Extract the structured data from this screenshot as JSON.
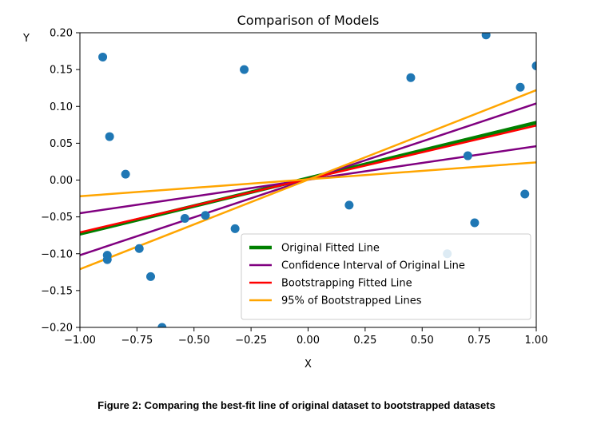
{
  "chart_data": {
    "type": "scatter",
    "title": "Comparison of Models",
    "xlabel": "X",
    "ylabel": "Y",
    "xlim": [
      -1.0,
      1.0
    ],
    "ylim": [
      -0.2,
      0.2
    ],
    "xticks": [
      -1.0,
      -0.75,
      -0.5,
      -0.25,
      0.0,
      0.25,
      0.5,
      0.75,
      1.0
    ],
    "xtick_labels": [
      "−1.00",
      "−0.75",
      "−0.50",
      "−0.25",
      "0.00",
      "0.25",
      "0.50",
      "0.75",
      "1.00"
    ],
    "yticks": [
      -0.2,
      -0.15,
      -0.1,
      -0.05,
      0.0,
      0.05,
      0.1,
      0.15,
      0.2
    ],
    "ytick_labels": [
      "−0.20",
      "−0.15",
      "−0.10",
      "−0.05",
      "0.00",
      "0.05",
      "0.10",
      "0.15",
      "0.20"
    ],
    "grid": false,
    "legend_position": "lower-right",
    "scatter_points": {
      "color": "#1f77b4",
      "points": [
        [
          -0.9,
          0.167
        ],
        [
          -0.87,
          0.059
        ],
        [
          -0.8,
          0.008
        ],
        [
          -0.88,
          -0.102
        ],
        [
          -0.88,
          -0.108
        ],
        [
          -0.74,
          -0.093
        ],
        [
          -0.69,
          -0.131
        ],
        [
          -0.64,
          -0.2
        ],
        [
          -0.54,
          -0.052
        ],
        [
          -0.45,
          -0.048
        ],
        [
          -0.32,
          -0.066
        ],
        [
          -0.28,
          0.15
        ],
        [
          0.18,
          -0.034
        ],
        [
          0.45,
          0.139
        ],
        [
          0.61,
          -0.1
        ],
        [
          0.7,
          0.033
        ],
        [
          0.73,
          -0.058
        ],
        [
          0.78,
          0.197
        ],
        [
          0.93,
          0.126
        ],
        [
          0.95,
          -0.019
        ],
        [
          1.0,
          0.155
        ]
      ]
    },
    "series": [
      {
        "name": "Original Fitted Line",
        "color": "#008000",
        "style": "thick",
        "x": [
          -1.0,
          1.0
        ],
        "y": [
          -0.073,
          0.078
        ]
      },
      {
        "name": "Confidence Interval of Original Line",
        "color": "#800080",
        "style": "normal",
        "x": [
          -1.0,
          1.0
        ],
        "y": [
          -0.102,
          0.104
        ]
      },
      {
        "name": "",
        "color": "#800080",
        "style": "normal",
        "x": [
          -1.0,
          1.0
        ],
        "y": [
          -0.045,
          0.046
        ]
      },
      {
        "name": "Bootstrapping Fitted Line",
        "color": "#ff0000",
        "style": "normal",
        "x": [
          -1.0,
          1.0
        ],
        "y": [
          -0.071,
          0.074
        ]
      },
      {
        "name": "95% of Bootstrapped Lines",
        "color": "#ffa500",
        "style": "normal",
        "x": [
          -1.0,
          1.0
        ],
        "y": [
          -0.121,
          0.122
        ]
      },
      {
        "name": "",
        "color": "#ffa500",
        "style": "normal",
        "x": [
          -1.0,
          1.0
        ],
        "y": [
          -0.022,
          0.024
        ]
      }
    ],
    "legend": [
      {
        "label": "Original Fitted Line",
        "color": "#008000",
        "style": "thick"
      },
      {
        "label": "Confidence Interval of Original Line",
        "color": "#800080",
        "style": "normal"
      },
      {
        "label": "Bootstrapping Fitted Line",
        "color": "#ff0000",
        "style": "normal"
      },
      {
        "label": "95% of Bootstrapped Lines",
        "color": "#ffa500",
        "style": "normal"
      }
    ]
  },
  "caption": "Figure 2: Comparing the best-fit line of original dataset to bootstrapped datasets"
}
